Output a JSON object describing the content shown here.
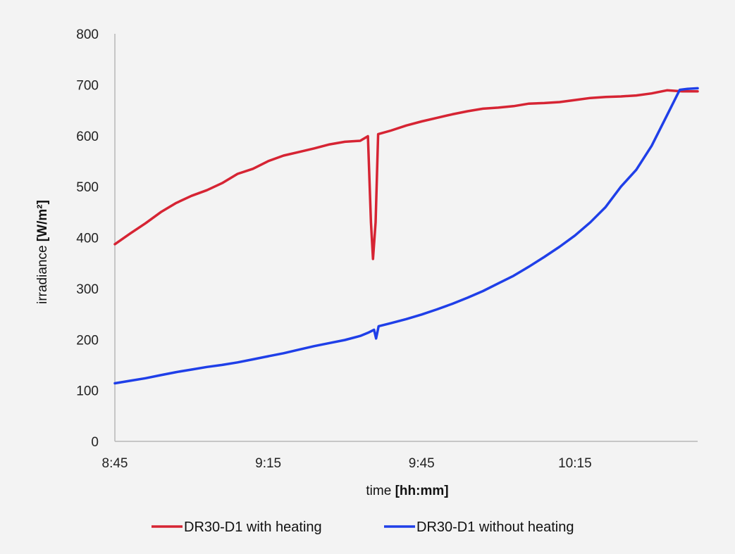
{
  "chart_data": {
    "type": "line",
    "xlabel": {
      "text": "time ",
      "unit": "[hh:mm]"
    },
    "ylabel": {
      "text": "irradiance ",
      "unit": "[W/m²]"
    },
    "x_tick_labels": [
      "8:45",
      "9:15",
      "9:45",
      "10:15"
    ],
    "x_tick_minutes": [
      525,
      555,
      585,
      615
    ],
    "xlim_minutes": [
      525,
      639
    ],
    "ylim": [
      0,
      800
    ],
    "y_ticks": [
      0,
      100,
      200,
      300,
      400,
      500,
      600,
      700,
      800
    ],
    "grid": false,
    "legend_position": "bottom",
    "series": [
      {
        "name": "DR30-D1 with heating",
        "color": "#d62433",
        "points_time_min_value": [
          [
            525,
            387
          ],
          [
            528,
            408
          ],
          [
            531,
            428
          ],
          [
            534,
            450
          ],
          [
            537,
            468
          ],
          [
            540,
            482
          ],
          [
            543,
            493
          ],
          [
            546,
            507
          ],
          [
            549,
            525
          ],
          [
            552,
            535
          ],
          [
            555,
            550
          ],
          [
            558,
            561
          ],
          [
            561,
            568
          ],
          [
            564,
            575
          ],
          [
            567,
            583
          ],
          [
            570,
            588
          ],
          [
            573,
            590
          ],
          [
            574.5,
            599
          ],
          [
            575.1,
            430
          ],
          [
            575.5,
            358
          ],
          [
            576,
            430
          ],
          [
            576.5,
            603
          ],
          [
            579,
            610
          ],
          [
            582,
            620
          ],
          [
            585,
            628
          ],
          [
            588,
            635
          ],
          [
            591,
            642
          ],
          [
            594,
            648
          ],
          [
            597,
            653
          ],
          [
            600,
            655
          ],
          [
            603,
            658
          ],
          [
            606,
            663
          ],
          [
            609,
            664
          ],
          [
            612,
            666
          ],
          [
            615,
            670
          ],
          [
            618,
            674
          ],
          [
            621,
            676
          ],
          [
            624,
            677
          ],
          [
            627,
            679
          ],
          [
            630,
            683
          ],
          [
            633,
            689
          ],
          [
            636,
            687
          ],
          [
            639,
            687
          ]
        ]
      },
      {
        "name": "DR30-D1 without heating",
        "color": "#1f3fe8",
        "points_time_min_value": [
          [
            525,
            114
          ],
          [
            528,
            119
          ],
          [
            531,
            124
          ],
          [
            534,
            130
          ],
          [
            537,
            136
          ],
          [
            540,
            141
          ],
          [
            543,
            146
          ],
          [
            546,
            150
          ],
          [
            549,
            155
          ],
          [
            552,
            161
          ],
          [
            555,
            167
          ],
          [
            558,
            173
          ],
          [
            561,
            180
          ],
          [
            564,
            187
          ],
          [
            567,
            193
          ],
          [
            570,
            199
          ],
          [
            573,
            207
          ],
          [
            574.5,
            213
          ],
          [
            575.7,
            219
          ],
          [
            576.1,
            202
          ],
          [
            576.6,
            226
          ],
          [
            579,
            232
          ],
          [
            582,
            240
          ],
          [
            585,
            249
          ],
          [
            588,
            259
          ],
          [
            591,
            270
          ],
          [
            594,
            282
          ],
          [
            597,
            295
          ],
          [
            600,
            310
          ],
          [
            603,
            325
          ],
          [
            606,
            343
          ],
          [
            609,
            362
          ],
          [
            612,
            382
          ],
          [
            615,
            404
          ],
          [
            618,
            430
          ],
          [
            621,
            460
          ],
          [
            624,
            500
          ],
          [
            627,
            533
          ],
          [
            630,
            580
          ],
          [
            633,
            640
          ],
          [
            635.5,
            690
          ],
          [
            637,
            692
          ],
          [
            639,
            693
          ]
        ]
      }
    ]
  }
}
